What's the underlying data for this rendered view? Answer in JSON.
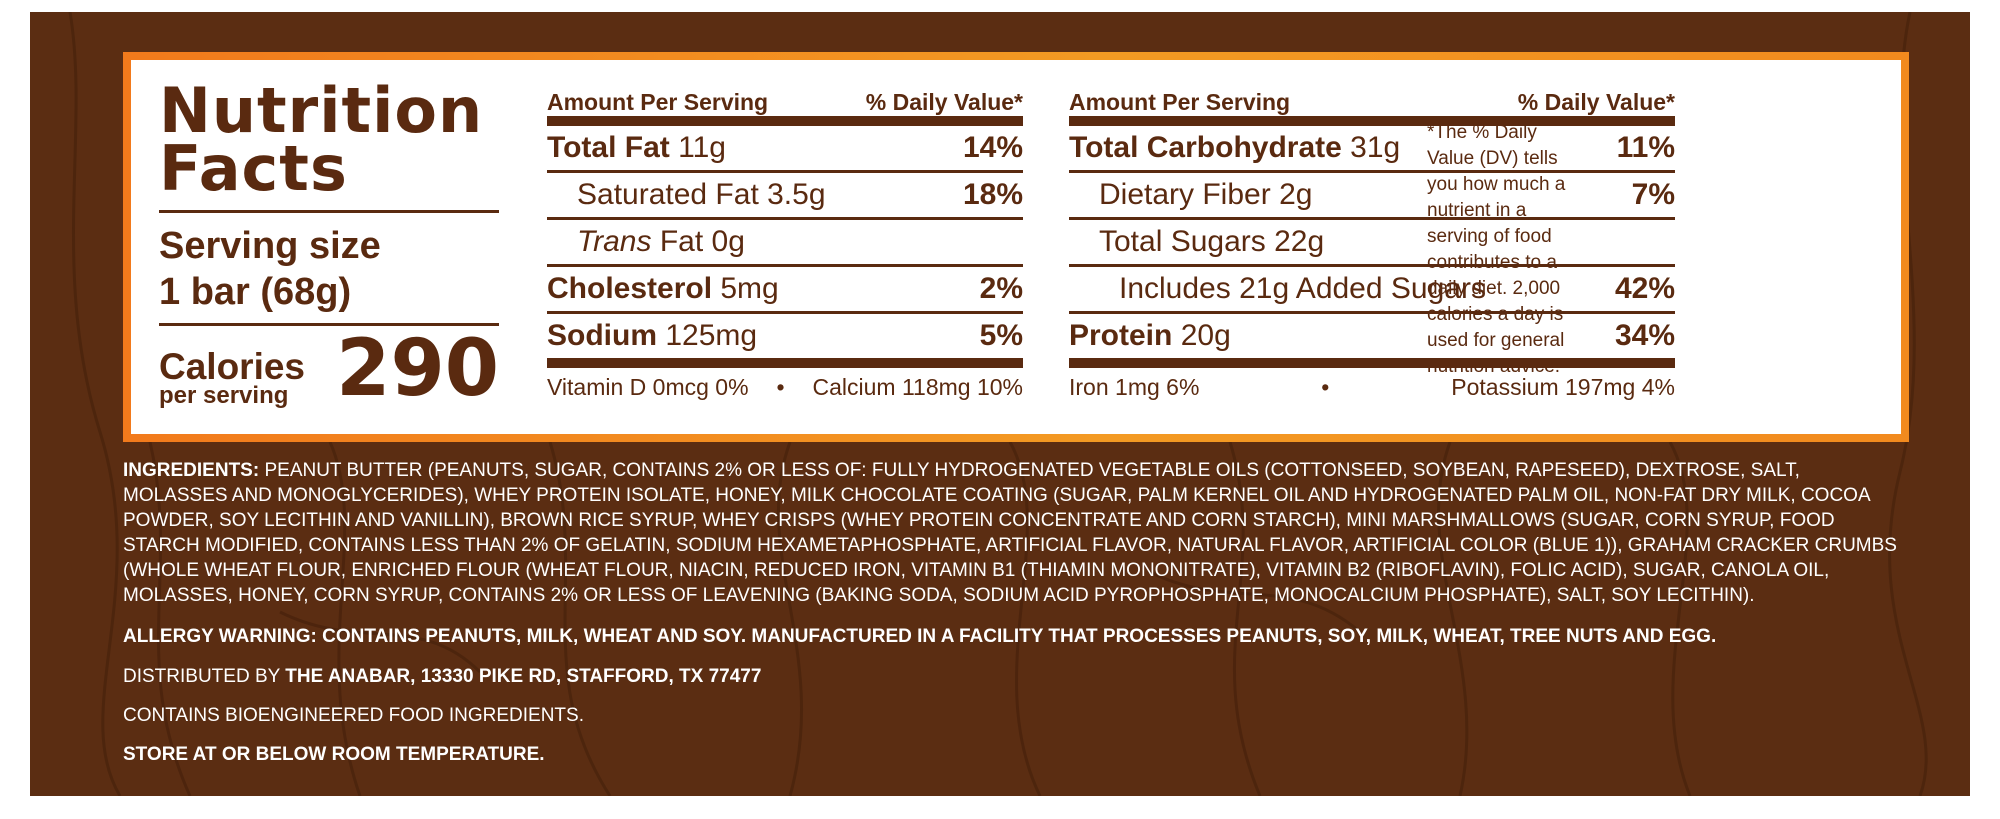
{
  "label": {
    "title_line1": "Nutrition",
    "title_line2": "Facts",
    "serving_size_label": "Serving size",
    "serving_size_value": "1 bar (68g)",
    "calories_label": "Calories",
    "calories_sub": "per serving",
    "calories_value": "290",
    "left_table": {
      "header_left": "Amount Per Serving",
      "header_right": "% Daily Value*",
      "rows": [
        {
          "name": "Total Fat",
          "amount": "11g",
          "dv": "14%"
        },
        {
          "name": "Saturated Fat",
          "amount": "3.5g",
          "dv": "18%"
        },
        {
          "name": "Trans",
          "name_suffix": "Fat",
          "amount": "0g",
          "dv": ""
        },
        {
          "name": "Cholesterol",
          "amount": "5mg",
          "dv": "2%"
        },
        {
          "name": "Sodium",
          "amount": "125mg",
          "dv": "5%"
        }
      ],
      "micro_left": "Vitamin D 0mcg 0%",
      "micro_sep": "•",
      "micro_right": "Calcium 118mg 10%"
    },
    "right_table": {
      "header_left": "Amount Per Serving",
      "header_right": "% Daily Value*",
      "rows": [
        {
          "name": "Total Carbohydrate",
          "amount": "31g",
          "dv": "11%"
        },
        {
          "name": "Dietary Fiber",
          "amount": "2g",
          "dv": "7%"
        },
        {
          "name": "Total Sugars",
          "amount": "22g",
          "dv": ""
        },
        {
          "name": "Includes 21g Added Sugars",
          "amount": "",
          "dv": "42%"
        },
        {
          "name": "Protein",
          "amount": "20g",
          "dv": "34%"
        }
      ],
      "micro_left": "Iron 1mg 6%",
      "micro_sep": "•",
      "micro_right": "Potassium 197mg 4%"
    },
    "footnote": "*The % Daily Value (DV) tells you how much a nutrient in a serving of food contributes to a daily diet. 2,000 calories a day is used for general nutrition advice."
  },
  "ingredients_label": "INGREDIENTS:",
  "ingredients_text": "PEANUT BUTTER (PEANUTS, SUGAR, CONTAINS 2% OR LESS OF: FULLY HYDROGENATED VEGETABLE OILS (COTTONSEED, SOYBEAN, RAPESEED), DEXTROSE, SALT, MOLASSES AND MONOGLYCERIDES), WHEY PROTEIN ISOLATE, HONEY, MILK CHOCOLATE COATING (SUGAR, PALM KERNEL OIL AND HYDROGENATED PALM OIL, NON-FAT DRY MILK, COCOA POWDER, SOY LECITHIN AND VANILLIN), BROWN RICE SYRUP, WHEY CRISPS (WHEY PROTEIN CONCENTRATE AND CORN STARCH), MINI MARSHMALLOWS (SUGAR, CORN SYRUP, FOOD STARCH MODIFIED, CONTAINS LESS THAN 2% OF GELATIN, SODIUM HEXAMETAPHOSPHATE, ARTIFICIAL FLAVOR, NATURAL FLAVOR, ARTIFICIAL COLOR (BLUE 1)), GRAHAM CRACKER CRUMBS (WHOLE WHEAT FLOUR, ENRICHED FLOUR (WHEAT FLOUR, NIACIN, REDUCED IRON, VITAMIN B1 (THIAMIN MONONITRATE), VITAMIN B2 (RIBOFLAVIN), FOLIC ACID), SUGAR, CANOLA OIL, MOLASSES, HONEY, CORN SYRUP, CONTAINS 2% OR LESS OF LEAVENING (BAKING SODA, SODIUM ACID PYROPHOSPHATE, MONOCALCIUM PHOSPHATE), SALT, SOY LECITHIN).",
  "allergy_warning": "ALLERGY WARNING: CONTAINS PEANUTS, MILK, WHEAT AND SOY. MANUFACTURED IN A FACILITY THAT PROCESSES PEANUTS, SOY, MILK, WHEAT, TREE NUTS AND EGG.",
  "distributed_prefix": "DISTRIBUTED BY",
  "distributed_by": "THE ANABAR, 13330 PIKE RD, STAFFORD, TX 77477",
  "bioengineered": "CONTAINS BIOENGINEERED FOOD INGREDIENTS.",
  "storage": "STORE AT OR BELOW ROOM TEMPERATURE.",
  "colors": {
    "background_brown": "#5b2d12",
    "label_text_brown": "#5a2a10",
    "frame_orange": "#f39a23"
  }
}
